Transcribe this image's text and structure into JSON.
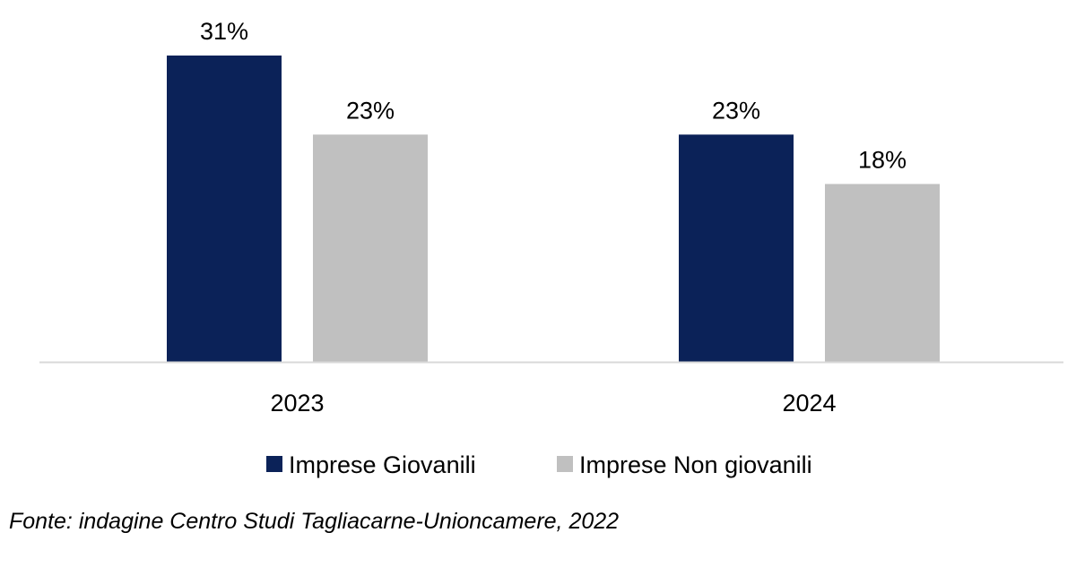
{
  "chart_data": {
    "type": "bar",
    "categories": [
      "2023",
      "2024"
    ],
    "series": [
      {
        "name": "Imprese Giovanili",
        "values": [
          31,
          23
        ],
        "labels": [
          "31%",
          "23%"
        ],
        "color": "#0b2258"
      },
      {
        "name": "Imprese Non giovanili",
        "values": [
          23,
          18
        ],
        "labels": [
          "23%",
          "18%"
        ],
        "color": "#c0c0c0"
      }
    ],
    "unit": "%",
    "ylim": [
      0,
      31
    ],
    "grid": false,
    "legend_position": "bottom",
    "axis_color": "#d9d9d9"
  },
  "source_note": "Fonte: indagine Centro Studi Tagliacarne-Unioncamere, 2022"
}
